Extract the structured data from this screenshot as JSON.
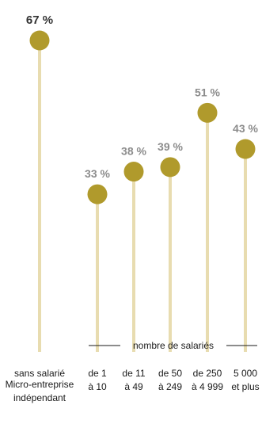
{
  "chart_data": {
    "type": "lollipop",
    "unit": "%",
    "group_label": "nombre de salariés",
    "footnote": [
      "Micro-entreprise",
      "indépendant"
    ],
    "items": [
      {
        "label": [
          "sans salarié"
        ],
        "value": 67,
        "value_label": "67 %",
        "highlight": true
      },
      {
        "label": [
          "de 1",
          "à 10"
        ],
        "value": 33,
        "value_label": "33 %"
      },
      {
        "label": [
          "de 11",
          "à 49"
        ],
        "value": 38,
        "value_label": "38 %"
      },
      {
        "label": [
          "de 50",
          "à 249"
        ],
        "value": 39,
        "value_label": "39 %"
      },
      {
        "label": [
          "de 250",
          "à 4 999"
        ],
        "value": 51,
        "value_label": "51 %"
      },
      {
        "label": [
          "5 000",
          "et plus"
        ],
        "value": 43,
        "value_label": "43 %"
      }
    ],
    "colors": {
      "stem": "#e8dcb0",
      "dot": "#b09a2c",
      "value_text": "#8c8c8c",
      "value_text_top": "#333333"
    }
  }
}
